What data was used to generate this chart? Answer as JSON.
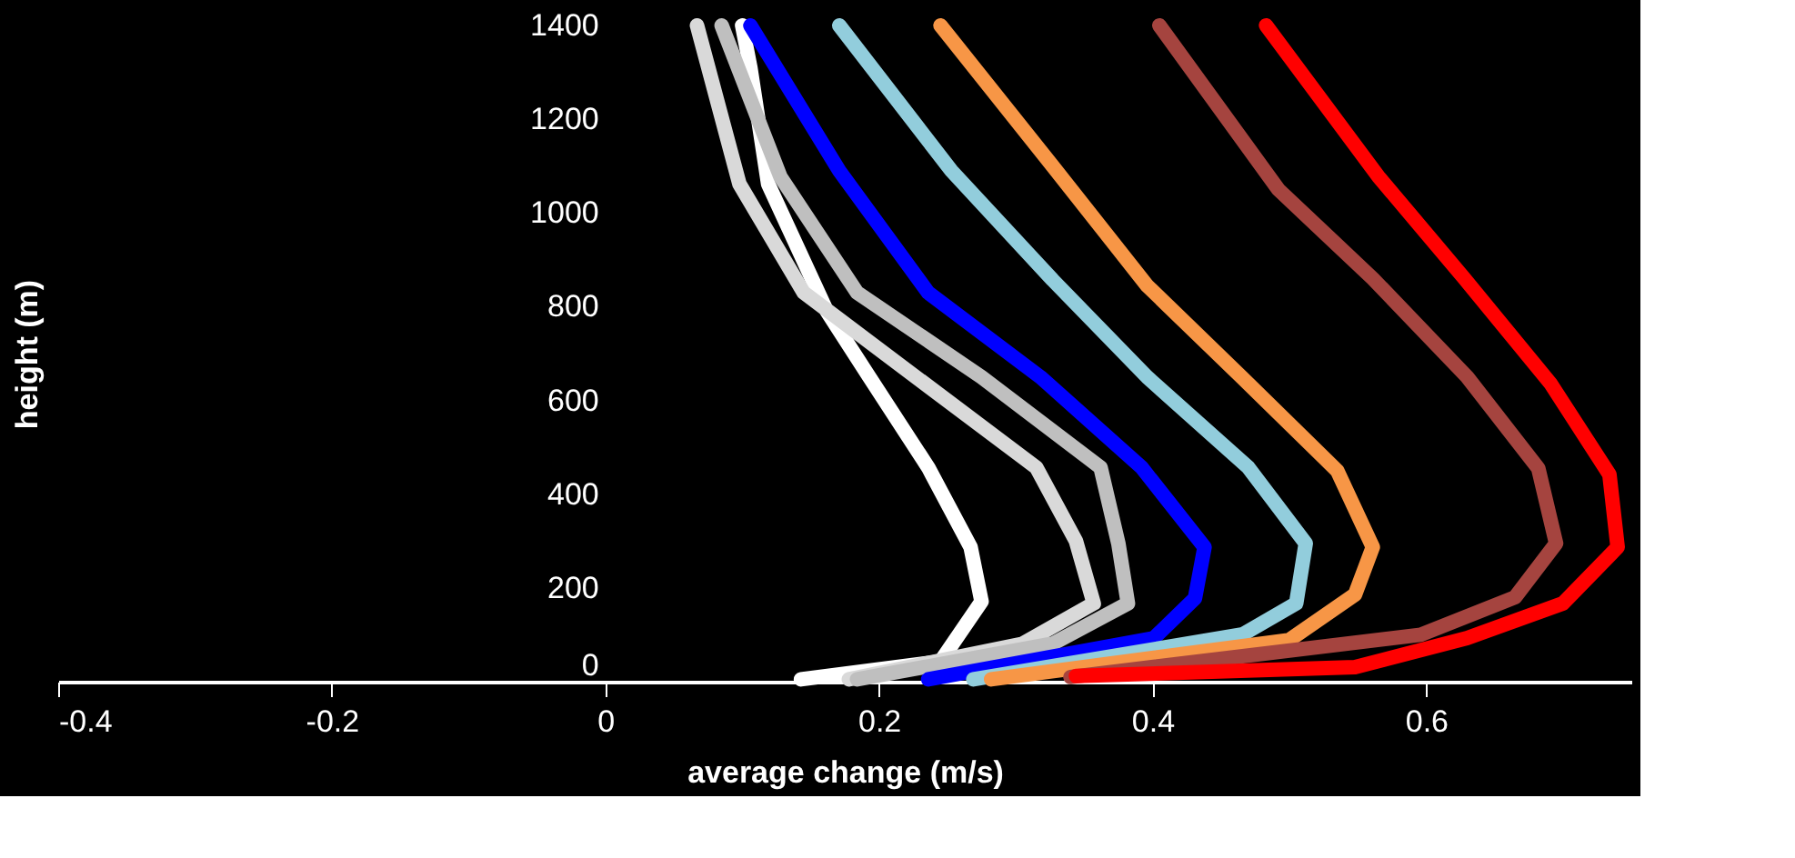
{
  "chart_data": {
    "type": "line",
    "xlabel": "average change (m/s)",
    "ylabel": "height (m)",
    "xlim": [
      -0.4,
      0.75
    ],
    "xticks": [
      -0.4,
      -0.2,
      0,
      0.2,
      0.4,
      0.6
    ],
    "ylim": [
      0,
      1400
    ],
    "yticks": [
      0,
      200,
      400,
      600,
      800,
      1000,
      1200,
      1400
    ],
    "line_style": "solid",
    "series": [
      {
        "color": "#ffffff",
        "x": [
          0.143,
          0.245,
          0.275,
          0.267,
          0.236,
          0.193,
          0.162,
          0.119,
          0.106,
          0.1
        ],
        "values": [
          5,
          43,
          171,
          287,
          457,
          650,
          790,
          1062,
          1310,
          1400
        ]
      },
      {
        "color": "#d9d9d9",
        "x": [
          0.178,
          0.305,
          0.357,
          0.344,
          0.315,
          0.227,
          0.145,
          0.098,
          0.067
        ],
        "values": [
          5,
          81,
          167,
          300,
          457,
          650,
          830,
          1062,
          1400
        ]
      },
      {
        "color": "#bfbfbf",
        "x": [
          0.184,
          0.327,
          0.382,
          0.375,
          0.362,
          0.275,
          0.184,
          0.128,
          0.085
        ],
        "values": [
          5,
          81,
          167,
          295,
          457,
          650,
          830,
          1077,
          1400
        ]
      },
      {
        "color": "#0000ff",
        "x": [
          0.236,
          0.401,
          0.431,
          0.438,
          0.392,
          0.318,
          0.236,
          0.171,
          0.106
        ],
        "values": [
          5,
          93,
          178,
          287,
          457,
          650,
          830,
          1090,
          1400
        ]
      },
      {
        "color": "#92cddc",
        "x": [
          0.269,
          0.466,
          0.505,
          0.512,
          0.47,
          0.396,
          0.327,
          0.253,
          0.171
        ],
        "values": [
          5,
          101,
          167,
          295,
          457,
          650,
          857,
          1090,
          1400
        ]
      },
      {
        "color": "#f79646",
        "x": [
          0.282,
          0.5,
          0.548,
          0.561,
          0.535,
          0.465,
          0.396,
          0.327,
          0.245
        ],
        "values": [
          5,
          89,
          186,
          287,
          450,
          650,
          845,
          1100,
          1400
        ]
      },
      {
        "color": "#a5443f",
        "x": [
          0.34,
          0.596,
          0.665,
          0.695,
          0.682,
          0.63,
          0.561,
          0.492,
          0.405
        ],
        "values": [
          10,
          100,
          180,
          295,
          455,
          650,
          860,
          1050,
          1400
        ]
      },
      {
        "color": "#ff0000",
        "x": [
          0.344,
          0.548,
          0.63,
          0.7,
          0.74,
          0.734,
          0.691,
          0.628,
          0.565,
          0.483
        ],
        "values": [
          12,
          31,
          93,
          167,
          287,
          442,
          636,
          860,
          1078,
          1400
        ]
      }
    ]
  }
}
